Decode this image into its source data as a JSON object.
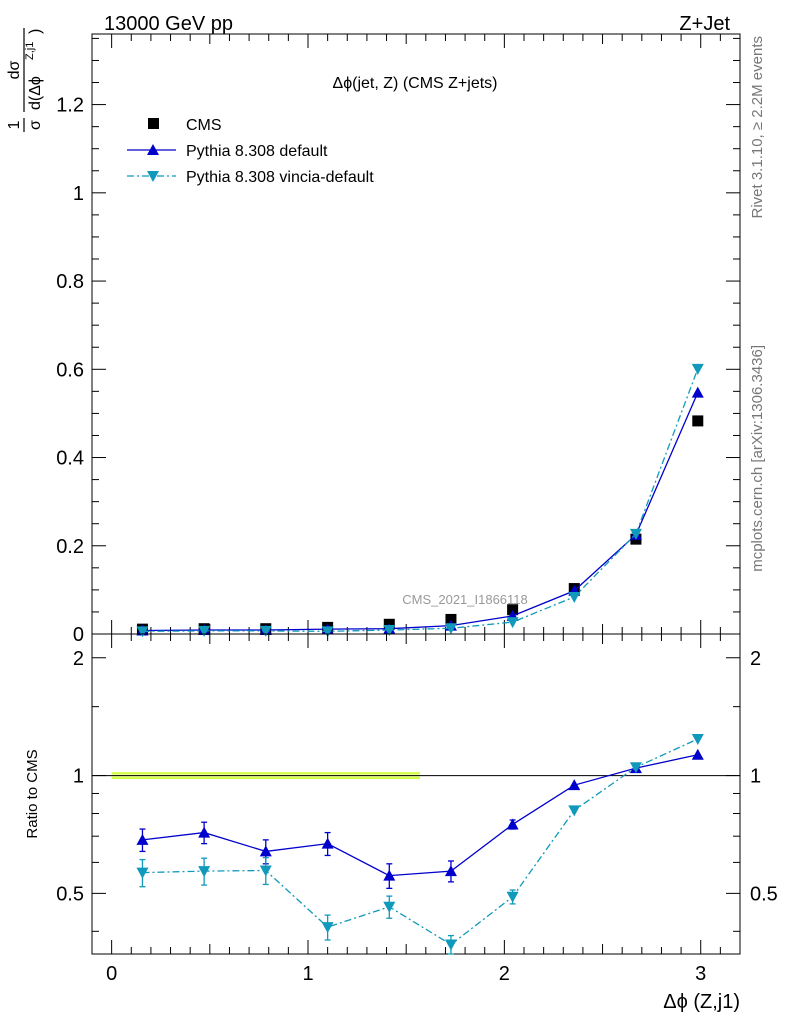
{
  "header": {
    "left": "13000 GeV pp",
    "right": "Z+Jet"
  },
  "side_labels": {
    "rivet": "Rivet 3.1.10, ≥ 2.2M events",
    "site": "mcplots.cern.ch [arXiv:1306.3436]"
  },
  "watermark": "CMS_2021_I1866118",
  "colors": {
    "cms": "#000000",
    "pythia_default": "#0000cc",
    "pythia_vincia": "#1199bb",
    "band_outer": "#ccff33",
    "band_inner": "#eeff99"
  },
  "chart_data": [
    {
      "type": "scatter",
      "panel": "main",
      "title": "Δϕ(jet, Z) (CMS Z+jets)",
      "ylabel_parts": {
        "prefix_num": "1",
        "prefix_den": "σ",
        "num": "dσ",
        "den": "d(Δϕ",
        "sup": "Z,j1",
        "close": ")"
      },
      "xlim": [
        -0.1,
        3.2
      ],
      "ylim": [
        0,
        1.36
      ],
      "yticks": [
        0,
        0.2,
        0.4,
        0.6,
        0.8,
        1,
        1.2
      ],
      "ytick_labels": [
        "0",
        "0.2",
        "0.4",
        "0.6",
        "0.8",
        "1",
        "1.2"
      ],
      "x": [
        0.157,
        0.471,
        0.785,
        1.1,
        1.414,
        1.728,
        2.042,
        2.356,
        2.67,
        2.985
      ],
      "legend_position": "top-left",
      "series": [
        {
          "name": "CMS",
          "marker": "square",
          "values": [
            0.011,
            0.012,
            0.012,
            0.015,
            0.022,
            0.033,
            0.055,
            0.103,
            0.215,
            0.483
          ]
        },
        {
          "name": "Pythia 8.308 default",
          "marker": "triangle-up",
          "line": "solid",
          "values": [
            0.008,
            0.009,
            0.009,
            0.011,
            0.012,
            0.019,
            0.041,
            0.098,
            0.225,
            0.547
          ]
        },
        {
          "name": "Pythia 8.308 vincia-default",
          "marker": "triangle-down",
          "line": "dashdot",
          "values": [
            0.006,
            0.007,
            0.007,
            0.006,
            0.009,
            0.013,
            0.027,
            0.084,
            0.227,
            0.601
          ]
        }
      ]
    },
    {
      "type": "scatter",
      "panel": "ratio",
      "ylabel": "Ratio to CMS",
      "xlabel": "Δϕ (Z,j1)",
      "xlim": [
        -0.1,
        3.2
      ],
      "ylim": [
        0.35,
        2.3
      ],
      "yscale": "log",
      "yticks": [
        0.5,
        1,
        2
      ],
      "ytick_labels": [
        "0.5",
        "1",
        "2"
      ],
      "xticks": [
        0,
        1,
        2,
        3
      ],
      "xtick_labels": [
        "0",
        "1",
        "2",
        "3"
      ],
      "x": [
        0.157,
        0.471,
        0.785,
        1.1,
        1.414,
        1.728,
        2.042,
        2.356,
        2.67,
        2.985
      ],
      "reference_line": 1,
      "band": {
        "x_range": [
          0,
          1.57
        ],
        "half_width": 0.02
      },
      "series": [
        {
          "name": "Pythia 8.308 default",
          "values": [
            0.685,
            0.715,
            0.64,
            0.67,
            0.555,
            0.57,
            0.75,
            0.945,
            1.045,
            1.13
          ],
          "errors": [
            0.045,
            0.045,
            0.045,
            0.045,
            0.04,
            0.035,
            0.02,
            0,
            0,
            0
          ]
        },
        {
          "name": "Pythia 8.308 vincia-default",
          "values": [
            0.565,
            0.57,
            0.572,
            0.41,
            0.462,
            0.37,
            0.49,
            0.815,
            1.05,
            1.24
          ],
          "errors": [
            0.045,
            0.045,
            0.045,
            0.03,
            0.03,
            0.02,
            0.02,
            0,
            0,
            0
          ]
        }
      ]
    }
  ]
}
